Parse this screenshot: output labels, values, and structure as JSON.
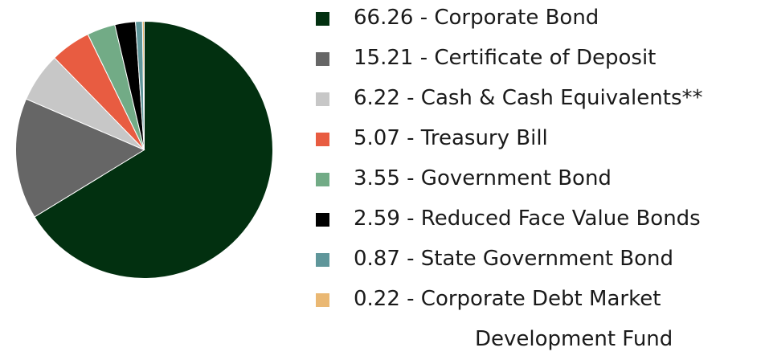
{
  "chart_data": {
    "type": "pie",
    "start_angle_deg": 0,
    "direction": "clockwise",
    "slices": [
      {
        "value": 66.26,
        "label": "Corporate Bond",
        "color": "#023010"
      },
      {
        "value": 15.21,
        "label": "Certificate of Deposit",
        "color": "#666666"
      },
      {
        "value": 6.22,
        "label": "Cash & Cash Equivalents**",
        "color": "#c7c7c7"
      },
      {
        "value": 5.07,
        "label": "Treasury Bill",
        "color": "#e85c41"
      },
      {
        "value": 3.55,
        "label": "Government Bond",
        "color": "#72ab86"
      },
      {
        "value": 2.59,
        "label": "Reduced Face Value Bonds",
        "color": "#000000"
      },
      {
        "value": 0.87,
        "label": "State Government Bond",
        "color": "#5f969a"
      },
      {
        "value": 0.22,
        "label": "Corporate Debt Market",
        "label_cont": "Development Fund",
        "color": "#eab873"
      }
    ]
  },
  "legend": {
    "items": [
      {
        "text": "66.26 - Corporate Bond",
        "color": "#023010"
      },
      {
        "text": "15.21 - Certificate of Deposit",
        "color": "#666666"
      },
      {
        "text": "6.22 - Cash & Cash Equivalents**",
        "color": "#c7c7c7"
      },
      {
        "text": "5.07 - Treasury Bill",
        "color": "#e85c41"
      },
      {
        "text": "3.55 - Government Bond",
        "color": "#72ab86"
      },
      {
        "text": "2.59 - Reduced Face Value Bonds",
        "color": "#000000"
      },
      {
        "text": "0.87 - State Government Bond",
        "color": "#5f969a"
      },
      {
        "text": "0.22 - Corporate Debt Market",
        "text_cont": "Development Fund",
        "color": "#eab873"
      }
    ]
  }
}
